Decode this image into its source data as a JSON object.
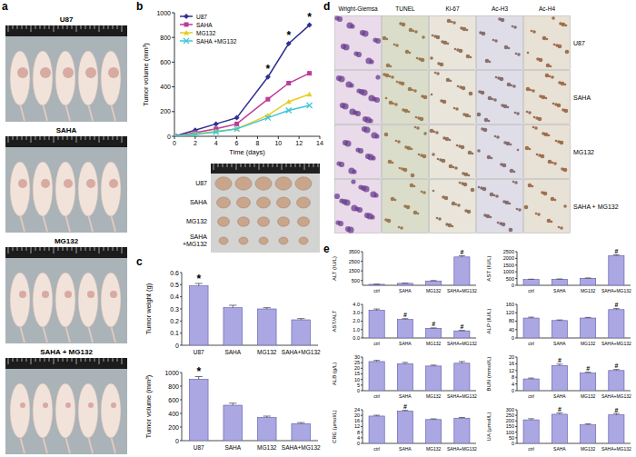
{
  "figure": {
    "panel_labels": [
      "a",
      "b",
      "c",
      "d",
      "e"
    ],
    "mouse_photos": [
      "U87",
      "SAHA",
      "MG132",
      "SAHA + MG132"
    ],
    "tumor_photo_rows": [
      "U87",
      "SAHA",
      "MG132",
      "SAHA +MG132"
    ],
    "histology": {
      "columns": [
        "Wright-Giemsa",
        "TUNEL",
        "Ki-67",
        "Ac-H3",
        "Ac-H4"
      ],
      "rows": [
        "U87",
        "SAHA",
        "MG132",
        "SAHA + MG132"
      ]
    }
  },
  "chart_data": [
    {
      "type": "line",
      "x_label": "Time (days)",
      "y_label": "Tumor volume (mm³)",
      "x": [
        0,
        2,
        4,
        6,
        9,
        11,
        13
      ],
      "xlim": [
        0,
        14
      ],
      "xticks": [
        0,
        2,
        4,
        6,
        8,
        10,
        12,
        14
      ],
      "ylim": [
        0,
        1000
      ],
      "yticks": [
        0,
        200,
        400,
        600,
        800,
        1000
      ],
      "legend": "top-left",
      "series": [
        {
          "name": "U87",
          "color": "#2e3192",
          "marker": "diamond",
          "values": [
            0,
            50,
            100,
            150,
            480,
            750,
            900
          ]
        },
        {
          "name": "SAHA",
          "color": "#c0399b",
          "marker": "square",
          "values": [
            0,
            30,
            60,
            100,
            300,
            430,
            510
          ]
        },
        {
          "name": "MG132",
          "color": "#e6cf1f",
          "marker": "triangle",
          "values": [
            0,
            20,
            40,
            60,
            170,
            280,
            340
          ]
        },
        {
          "name": "SAHA +MG132",
          "color": "#3fc6d8",
          "marker": "x",
          "values": [
            0,
            15,
            35,
            60,
            150,
            210,
            250
          ]
        }
      ],
      "annotations": [
        {
          "text": "*",
          "x": 9
        },
        {
          "text": "*",
          "x": 11
        },
        {
          "text": "*",
          "x": 13
        }
      ]
    },
    {
      "type": "bar",
      "y_label": "Tumor weight (g)",
      "categories": [
        "U87",
        "SAHA",
        "MG132",
        "SAHA+MG132"
      ],
      "values": [
        0.49,
        0.31,
        0.3,
        0.21
      ],
      "errors": [
        0.02,
        0.02,
        0.01,
        0.01
      ],
      "annotations": [
        "*",
        null,
        null,
        null
      ],
      "ylim": [
        0,
        0.6
      ],
      "yticks": [
        0,
        0.1,
        0.2,
        0.3,
        0.4,
        0.5,
        0.6
      ],
      "color": "#aaa7e3"
    },
    {
      "type": "bar",
      "y_label": "Tumor volume (mm³)",
      "categories": [
        "U87",
        "SAHA",
        "MG132",
        "SAHA+MG132"
      ],
      "values": [
        900,
        520,
        340,
        250
      ],
      "errors": [
        40,
        30,
        20,
        15
      ],
      "annotations": [
        "*",
        null,
        null,
        null
      ],
      "ylim": [
        0,
        1000
      ],
      "yticks": [
        0,
        200,
        400,
        600,
        800,
        1000
      ],
      "color": "#aaa7e3"
    },
    {
      "type": "bar",
      "y_label": "ALT (IU/L)",
      "categories": [
        "ctrl",
        "SAHA",
        "MG132",
        "SAHA+MG132"
      ],
      "values": [
        100,
        200,
        450,
        2950
      ],
      "errors": [
        15,
        20,
        40,
        120
      ],
      "annotations": [
        null,
        null,
        null,
        "#"
      ],
      "ylim": [
        0,
        3500
      ],
      "yticks": [
        500,
        1500,
        2500,
        3500
      ],
      "color": "#aaa7e3"
    },
    {
      "type": "bar",
      "y_label": "AST (IU/L)",
      "categories": [
        "ctrl",
        "SAHA",
        "MG132",
        "SAHA+MG132"
      ],
      "values": [
        430,
        450,
        520,
        2200
      ],
      "errors": [
        25,
        20,
        25,
        70
      ],
      "annotations": [
        null,
        null,
        null,
        "#"
      ],
      "ylim": [
        0,
        2500
      ],
      "yticks": [
        0,
        500,
        1000,
        1500,
        2000,
        2500
      ],
      "color": "#aaa7e3"
    },
    {
      "type": "bar",
      "y_label": "AST/ALT",
      "categories": [
        "ctrl",
        "SAHA",
        "MG132",
        "SAHA+MG132"
      ],
      "values": [
        3.3,
        2.2,
        1.15,
        0.85
      ],
      "errors": [
        0.15,
        0.1,
        0.05,
        0.05
      ],
      "annotations": [
        null,
        "#",
        "#",
        "#"
      ],
      "ylim": [
        0,
        4
      ],
      "yticks": [
        {
          "value": 0,
          "label": "0.0"
        },
        {
          "value": 1,
          "label": "1.0"
        },
        {
          "value": 2,
          "label": "2.0"
        },
        {
          "value": 3,
          "label": "3.0"
        },
        {
          "value": 4,
          "label": "4.0"
        }
      ],
      "color": "#aaa7e3"
    },
    {
      "type": "bar",
      "y_label": "ALP (IU/L)",
      "categories": [
        "ctrl",
        "SAHA",
        "MG132",
        "SAHA+MG132"
      ],
      "values": [
        95,
        83,
        95,
        135
      ],
      "errors": [
        4,
        3,
        3,
        5
      ],
      "annotations": [
        null,
        null,
        null,
        "#"
      ],
      "ylim": [
        0,
        160
      ],
      "yticks": [
        0,
        40,
        80,
        120,
        160
      ],
      "color": "#aaa7e3"
    },
    {
      "type": "bar",
      "y_label": "ALB (g/L)",
      "categories": [
        "ctrl",
        "SAHA",
        "MG132",
        "SAHA+MG132"
      ],
      "values": [
        26,
        24,
        22,
        24.5
      ],
      "errors": [
        1,
        1.2,
        0.8,
        1.5
      ],
      "ylim": [
        0,
        30
      ],
      "yticks": [
        0,
        5,
        10,
        15,
        20,
        25,
        30
      ],
      "color": "#aaa7e3"
    },
    {
      "type": "bar",
      "y_label": "BUN (mmol/L)",
      "categories": [
        "ctrl",
        "SAHA",
        "MG132",
        "SAHA+MG132"
      ],
      "values": [
        7,
        15,
        10.5,
        12
      ],
      "errors": [
        0.5,
        0.8,
        0.5,
        0.6
      ],
      "annotations": [
        null,
        "#",
        "#",
        "#"
      ],
      "ylim": [
        0,
        20
      ],
      "yticks": [
        0,
        4,
        8,
        12,
        16,
        20
      ],
      "color": "#aaa7e3"
    },
    {
      "type": "bar",
      "y_label": "CRE (μmol/L)",
      "categories": [
        "ctrl",
        "SAHA",
        "MG132",
        "SAHA+MG132"
      ],
      "values": [
        19.5,
        23,
        17,
        18
      ],
      "errors": [
        0.6,
        0.8,
        0.5,
        0.5
      ],
      "annotations": [
        null,
        "#",
        null,
        null
      ],
      "ylim": [
        0,
        24
      ],
      "yticks": [
        0,
        4,
        8,
        12,
        16,
        20,
        24
      ],
      "color": "#aaa7e3"
    },
    {
      "type": "bar",
      "y_label": "UA (μmol/L)",
      "categories": [
        "ctrl",
        "SAHA",
        "MG132",
        "SAHA+MG132"
      ],
      "values": [
        210,
        260,
        165,
        255
      ],
      "errors": [
        10,
        12,
        10,
        12
      ],
      "annotations": [
        null,
        "#",
        null,
        "#"
      ],
      "ylim": [
        0,
        300
      ],
      "yticks": [
        0,
        50,
        100,
        150,
        200,
        250,
        300
      ],
      "color": "#aaa7e3"
    }
  ]
}
